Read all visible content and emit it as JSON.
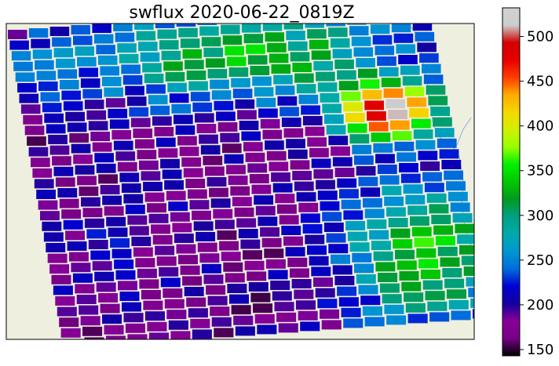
{
  "chart_data": {
    "type": "heatmap",
    "title": "swflux 2020-06-22_0819Z",
    "variable": "swflux",
    "colormap": "nipy_spectral",
    "background_colors": {
      "land": "#efefe0",
      "swath_gap": "#ffffff",
      "coastline": "#8fb0d8"
    },
    "colorbar": {
      "vmin": 143,
      "vmax": 532,
      "ticks": [
        150,
        200,
        250,
        300,
        350,
        400,
        450,
        500
      ],
      "tick_labels": [
        "150",
        "200",
        "250",
        "300",
        "350",
        "400",
        "450",
        "500"
      ]
    },
    "grid": false,
    "swath": {
      "scan_lines": 30,
      "pixels_per_line": 20,
      "field_description_value_anchors": {
        "upper_left_band": 230,
        "north_center_band": 320,
        "central_purple_band": 180,
        "east_hotspot_max": 525,
        "southeast_band": 340,
        "southwest_band": 200
      }
    }
  }
}
